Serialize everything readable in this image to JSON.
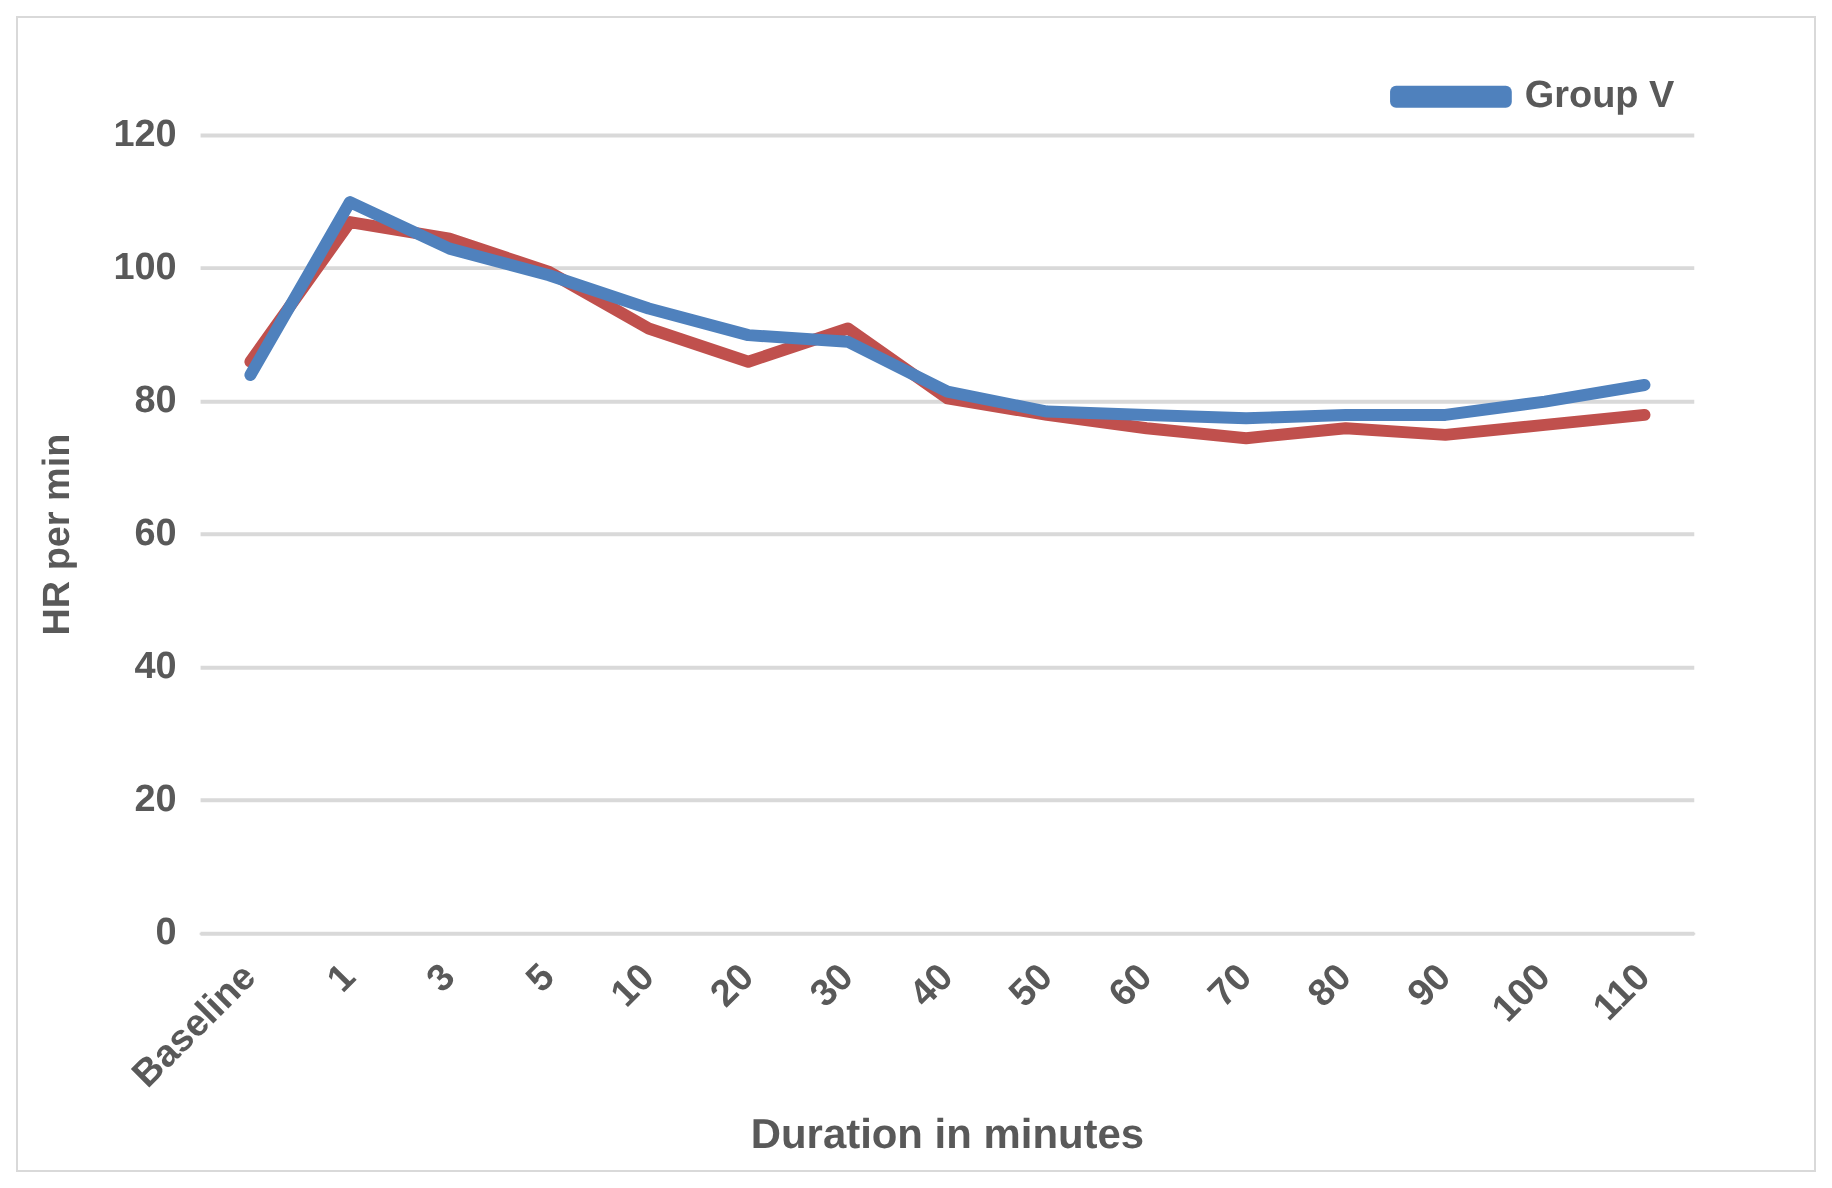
{
  "chart_data": {
    "type": "line",
    "xlabel": "Duration in minutes",
    "ylabel": "HR per min",
    "categories": [
      "Baseline",
      "1",
      "3",
      "5",
      "10",
      "20",
      "30",
      "40",
      "50",
      "60",
      "70",
      "80",
      "90",
      "100",
      "110"
    ],
    "series": [
      {
        "name": "Group V",
        "color": "#4f81bd",
        "values": [
          84,
          110,
          103,
          99,
          94,
          90,
          89,
          81.5,
          78.5,
          78,
          77.5,
          78,
          78,
          80,
          82.5
        ]
      },
      {
        "color": "#c0504d",
        "values": [
          86,
          107,
          104.5,
          99.5,
          91,
          86,
          91,
          80.5,
          78,
          76,
          74.5,
          76,
          75,
          76.5,
          78
        ]
      }
    ],
    "ylim": [
      0,
      120
    ],
    "yticks": [
      0,
      20,
      40,
      60,
      80,
      100,
      120
    ],
    "grid": "y",
    "legend": "top right",
    "marker": "none",
    "line_style": "solid"
  }
}
